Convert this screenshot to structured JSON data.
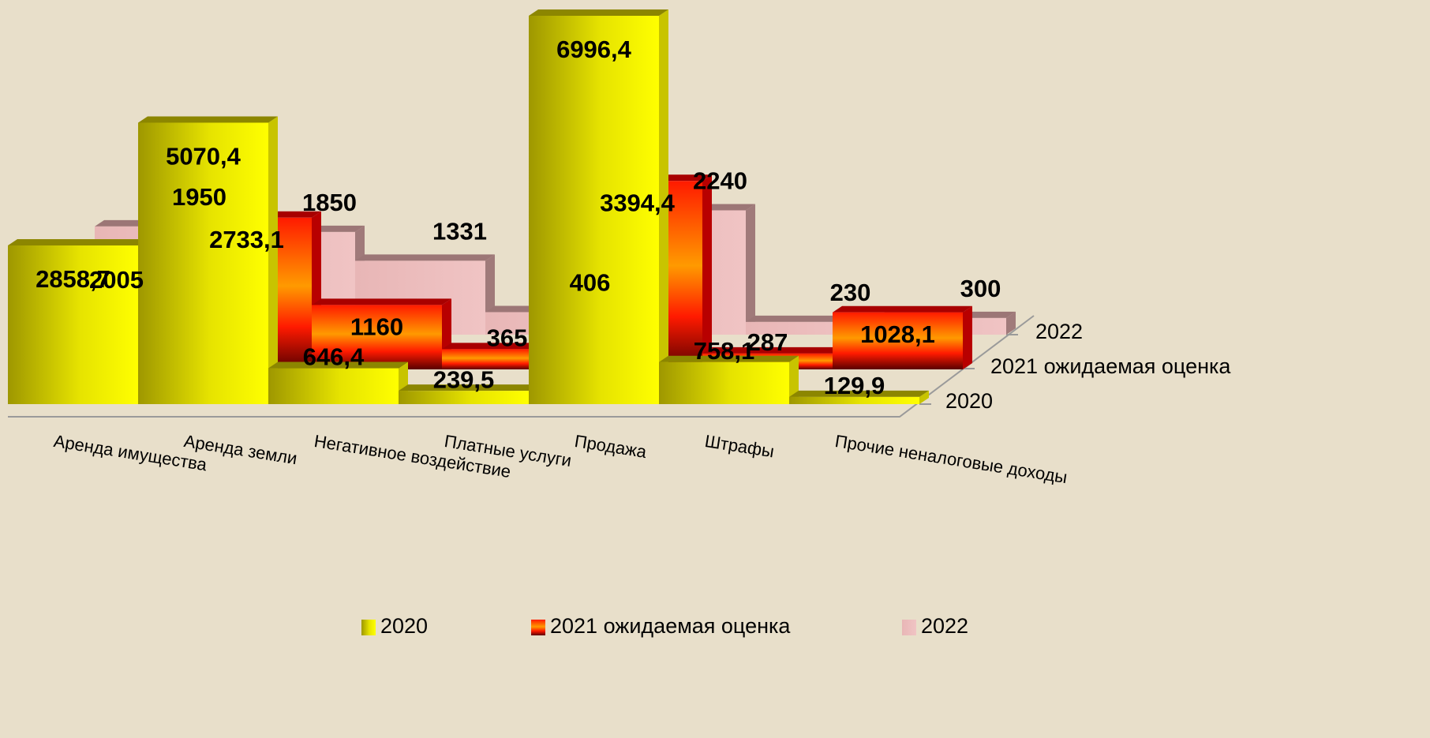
{
  "chart_data": {
    "type": "bar",
    "categories": [
      "Аренда имущества",
      "Аренда земли",
      "Негативное воздействие",
      "Платные услуги",
      "Продажа",
      "Штрафы",
      "Прочие неналоговые доходы"
    ],
    "series": [
      {
        "name": "2020",
        "color": "#ffff00",
        "values": [
          2858.7,
          5070.4,
          646.4,
          239.5,
          6996.4,
          758.1,
          129.9
        ],
        "value_labels": [
          "2858,7",
          "5070,4",
          "646,4",
          "239,5",
          "6996,4",
          "758,1",
          "129,9"
        ]
      },
      {
        "name": "2021 ожидаемая оценка",
        "color": "#ff1a00",
        "values": [
          2005,
          2733.1,
          1160,
          365,
          3394.4,
          287,
          1028.1
        ],
        "value_labels": [
          "2005",
          "2733,1",
          "1160",
          "365",
          "3394,4",
          "287",
          "1028,1"
        ]
      },
      {
        "name": "2022",
        "color": "#e8b6b6",
        "values": [
          1950,
          1850,
          1331,
          406,
          2240,
          230,
          300
        ]
      }
    ],
    "legend": "bottom"
  }
}
